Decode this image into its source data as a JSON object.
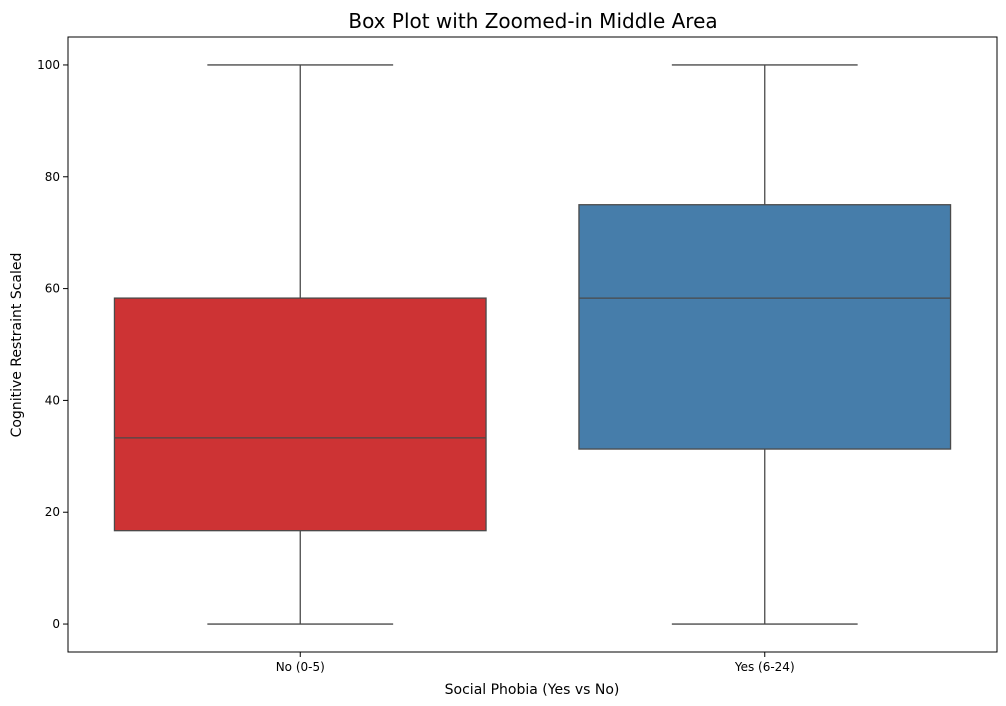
{
  "chart_data": {
    "type": "box",
    "title": "Box Plot with Zoomed-in Middle Area",
    "xlabel": "Social Phobia (Yes vs No)",
    "ylabel": "Cognitive Restraint Scaled",
    "ylim": [
      -5,
      105
    ],
    "yticks": [
      0,
      20,
      40,
      60,
      80,
      100
    ],
    "grid": false,
    "categories": [
      "No (0-5)",
      "Yes (6-24)"
    ],
    "boxes": [
      {
        "category": "No (0-5)",
        "min": 0,
        "q1": 16.7,
        "median": 33.3,
        "q3": 58.3,
        "max": 100,
        "color": "#cd3334"
      },
      {
        "category": "Yes (6-24)",
        "min": 0,
        "q1": 31.3,
        "median": 58.3,
        "q3": 75.0,
        "max": 100,
        "color": "#467daa"
      }
    ],
    "edge_color": "#4a4a4a"
  }
}
